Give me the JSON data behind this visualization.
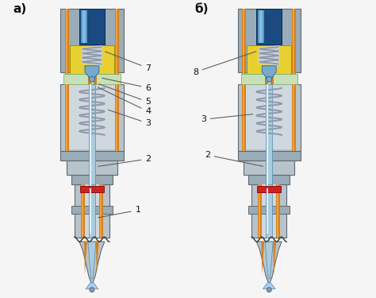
{
  "label_a": "а)",
  "label_b": "б)",
  "bg_color": "#f5f5f5",
  "outer_gray": "#9aacb8",
  "mid_gray": "#b8c4cc",
  "inner_gray": "#d0d8df",
  "blue_top": "#5599cc",
  "blue_light": "#aaccdd",
  "orange": "#d4821a",
  "yellow": "#e8d030",
  "green": "#c8e0b8",
  "red_seal": "#cc2222",
  "spring_col": "#909aa8",
  "dark_blue": "#1a4a80",
  "needle_blue": "#78aacc",
  "coil_highlight": "#c8d8e8"
}
